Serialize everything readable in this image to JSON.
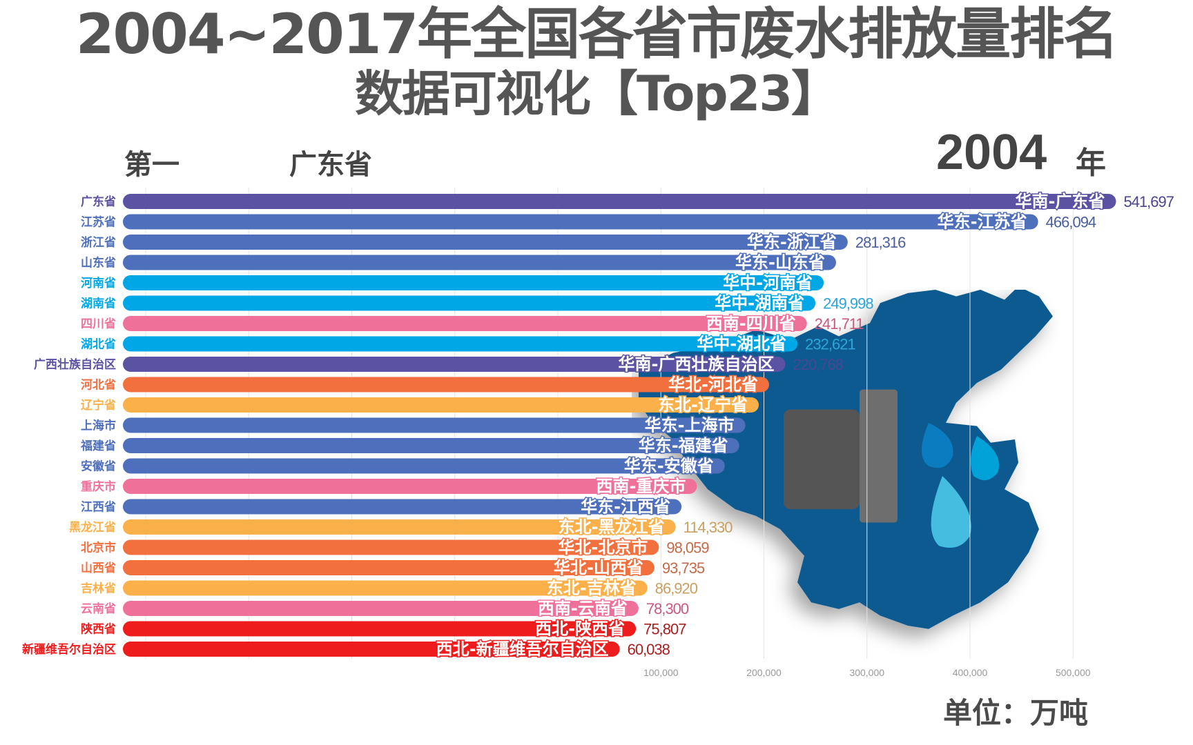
{
  "header": {
    "rank_label": "第一",
    "leader_name": "广东省",
    "year": "2004",
    "year_unit": "年"
  },
  "overlay_title": {
    "line1": "2004~2017年全国各省市废水排放量排名",
    "line2": "数据可视化【Top23】"
  },
  "unit_label": "单位：万吨",
  "colors": {
    "华南": "#5b52a3",
    "华东": "#4e6fbb",
    "华中": "#00a7e6",
    "西南": "#ef7199",
    "华北": "#f26f3e",
    "东北": "#fcb04a",
    "西北": "#ee1c1c",
    "map": "#0a5a91"
  },
  "value_colors": {
    "华南": "#4a4690",
    "华东": "#4a5f9c",
    "华中": "#2aa7d8",
    "西南": "#c75a7e",
    "华北": "#c46a48",
    "东北": "#caa060",
    "西北": "#a82020"
  },
  "chart_data": {
    "type": "bar",
    "orientation": "horizontal",
    "year": "2004",
    "unit": "万吨",
    "xlim": [
      0,
      560000
    ],
    "x_ticks": [
      "100,000",
      "200,000",
      "300,000",
      "400,000",
      "500,000"
    ],
    "grid": true,
    "rows": [
      {
        "name": "广东省",
        "label": "华南-广东省",
        "region": "华南",
        "value": 541697,
        "value_label": "541,697"
      },
      {
        "name": "江苏省",
        "label": "华东-江苏省",
        "region": "华东",
        "value": 466094,
        "value_label": "466,094"
      },
      {
        "name": "浙江省",
        "label": "华东-浙江省",
        "region": "华东",
        "value": 281316,
        "value_label": "281,316"
      },
      {
        "name": "山东省",
        "label": "华东-山东省",
        "region": "华东",
        "value": 270000,
        "value_label": ""
      },
      {
        "name": "河南省",
        "label": "华中-河南省",
        "region": "华中",
        "value": 258000,
        "value_label": ""
      },
      {
        "name": "湖南省",
        "label": "华中-湖南省",
        "region": "华中",
        "value": 249998,
        "value_label": "249,998"
      },
      {
        "name": "四川省",
        "label": "西南-四川省",
        "region": "西南",
        "value": 241711,
        "value_label": "241,711"
      },
      {
        "name": "湖北省",
        "label": "华中-湖北省",
        "region": "华中",
        "value": 232621,
        "value_label": "232,621"
      },
      {
        "name": "广西壮族自治区",
        "label": "华南-广西壮族自治区",
        "region": "华南",
        "value": 220768,
        "value_label": "220,768"
      },
      {
        "name": "河北省",
        "label": "华北-河北省",
        "region": "华北",
        "value": 205000,
        "value_label": ""
      },
      {
        "name": "辽宁省",
        "label": "东北-辽宁省",
        "region": "东北",
        "value": 195000,
        "value_label": ""
      },
      {
        "name": "上海市",
        "label": "华东-上海市",
        "region": "华东",
        "value": 182000,
        "value_label": ""
      },
      {
        "name": "福建省",
        "label": "华东-福建省",
        "region": "华东",
        "value": 176000,
        "value_label": ""
      },
      {
        "name": "安徽省",
        "label": "华东-安徽省",
        "region": "华东",
        "value": 162000,
        "value_label": ""
      },
      {
        "name": "重庆市",
        "label": "西南-重庆市",
        "region": "西南",
        "value": 135000,
        "value_label": ""
      },
      {
        "name": "江西省",
        "label": "华东-江西省",
        "region": "华东",
        "value": 120000,
        "value_label": ""
      },
      {
        "name": "黑龙江省",
        "label": "东北-黑龙江省",
        "region": "东北",
        "value": 114330,
        "value_label": "114,330"
      },
      {
        "name": "北京市",
        "label": "华北-北京市",
        "region": "华北",
        "value": 98059,
        "value_label": "98,059"
      },
      {
        "name": "山西省",
        "label": "华北-山西省",
        "region": "华北",
        "value": 93735,
        "value_label": "93,735"
      },
      {
        "name": "吉林省",
        "label": "东北-吉林省",
        "region": "东北",
        "value": 86920,
        "value_label": "86,920"
      },
      {
        "name": "云南省",
        "label": "西南-云南省",
        "region": "西南",
        "value": 78300,
        "value_label": "78,300"
      },
      {
        "name": "陕西省",
        "label": "西北-陕西省",
        "region": "西北",
        "value": 75807,
        "value_label": "75,807"
      },
      {
        "name": "新疆维吾尔自治区",
        "label": "西北-新疆维吾尔自治区",
        "region": "西北",
        "value": 60038,
        "value_label": "60,038"
      }
    ]
  }
}
